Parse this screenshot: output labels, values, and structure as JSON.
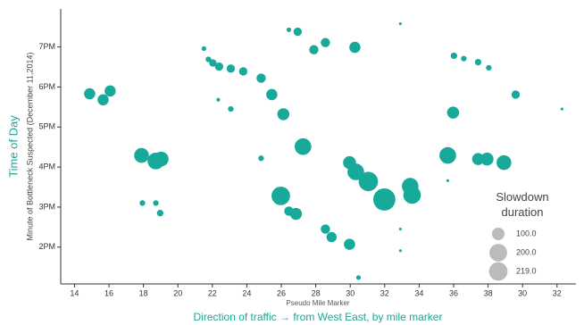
{
  "chart_data": {
    "type": "bubble",
    "x_label": "Pseudo Mile Marker",
    "x_title": "Direction of traffic → from West East, by mile marker",
    "y_label": "Minute of Bottleneck Suspected (December 11,2014)",
    "y_title": "Time of Day",
    "xlim": [
      13.2,
      43.1
    ],
    "xticks": [
      14,
      16,
      18,
      20,
      22,
      24,
      26,
      28,
      30,
      32,
      34,
      36,
      38,
      {
        "value": 40,
        "label": "30"
      },
      {
        "value": 42,
        "label": "32"
      }
    ],
    "ylim": [
      13.08,
      19.95
    ],
    "yticks": [
      {
        "value": 14,
        "label": "2PM"
      },
      {
        "value": 15,
        "label": "3PM"
      },
      {
        "value": 16,
        "label": "4PM"
      },
      {
        "value": 17,
        "label": "5PM"
      },
      {
        "value": 18,
        "label": "6PM"
      },
      {
        "value": 19,
        "label": "7PM"
      }
    ],
    "series": [
      {
        "color": "#17a99a",
        "x": [
          14.88,
          15.66,
          16.07,
          17.89,
          18.72,
          19.03,
          17.94,
          18.72,
          18.97,
          21.51,
          21.77,
          22.03,
          22.39,
          23.07,
          23.79,
          24.83,
          22.34,
          23.07,
          25.45,
          26.12,
          24.83,
          27.26,
          25.97,
          26.44,
          26.85,
          26.44,
          26.95,
          27.89,
          28.56,
          30.27,
          32.91,
          29.96,
          30.32,
          31.05,
          31.98,
          33.48,
          33.59,
          28.56,
          28.92,
          29.96,
          30.48,
          32.91,
          32.91,
          35.66,
          35.66,
          36.02,
          36.59,
          37.42,
          38.04,
          35.97,
          37.42,
          37.94,
          38.92,
          39.6,
          42.29
        ],
        "values": [
          17.83,
          17.68,
          17.9,
          16.29,
          16.15,
          16.2,
          15.1,
          15.1,
          14.85,
          18.96,
          18.69,
          18.6,
          18.51,
          18.46,
          18.39,
          18.22,
          17.68,
          17.45,
          17.81,
          17.32,
          16.22,
          16.51,
          15.28,
          14.9,
          14.83,
          19.43,
          19.38,
          18.93,
          19.11,
          18.99,
          19.58,
          16.11,
          15.88,
          15.64,
          15.19,
          15.52,
          15.3,
          14.45,
          14.25,
          14.07,
          13.24,
          14.45,
          13.91,
          16.29,
          15.66,
          18.78,
          18.71,
          18.62,
          18.48,
          17.36,
          16.2,
          16.2,
          16.11,
          17.81,
          17.45
        ],
        "sizes": [
          80,
          80,
          80,
          140,
          177,
          140,
          20,
          20,
          27,
          14,
          20,
          35,
          44,
          44,
          44,
          55,
          9,
          20,
          80,
          92,
          20,
          177,
          219,
          55,
          92,
          14,
          44,
          55,
          55,
          80,
          5,
          107,
          177,
          240,
          315,
          177,
          197,
          55,
          66,
          80,
          14,
          5,
          5,
          177,
          5,
          27,
          20,
          27,
          20,
          92,
          92,
          107,
          140,
          44,
          5
        ]
      }
    ],
    "legend": {
      "title": "Slowdown duration",
      "color": "#bbbbbb",
      "sizes": [
        100,
        200,
        219
      ],
      "value_labels": [
        "100.0",
        "200.0",
        "219.0"
      ]
    }
  }
}
